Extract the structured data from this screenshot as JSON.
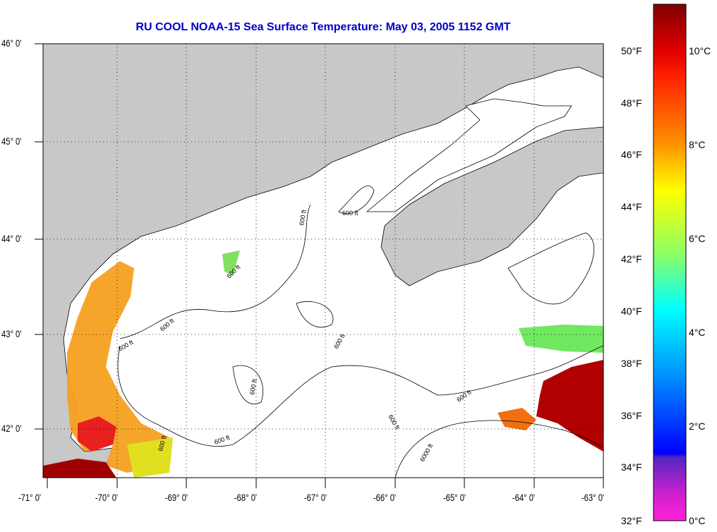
{
  "title": "RU COOL  NOAA-15  Sea Surface Temperature:  May 03, 2005 1152 GMT",
  "lat_labels": [
    "46° 0'",
    "45° 0'",
    "44° 0'",
    "43° 0'",
    "42° 0'"
  ],
  "lon_labels": [
    "-71° 0'",
    "-70° 0'",
    "-69° 0'",
    "-68° 0'",
    "-67° 0'",
    "-66° 0'",
    "-65° 0'",
    "-64° 0'",
    "-63° 0'"
  ],
  "contour_labels": [
    "600 ft",
    "600 ft",
    "600 ft",
    "600 ft",
    "600 ft",
    "600 ft",
    "600 ft",
    "600 ft",
    "600 ft",
    "600 ft",
    "600 ft",
    "6000 ft"
  ],
  "colorbar": {
    "fahrenheit": [
      "50°F",
      "48°F",
      "46°F",
      "44°F",
      "42°F",
      "40°F",
      "38°F",
      "36°F",
      "34°F",
      "32°F"
    ],
    "celsius": [
      "10°C",
      "8°C",
      "6°C",
      "4°C",
      "2°C",
      "0°C"
    ]
  },
  "colors": {
    "land": "#c8c8c8",
    "title": "#0000c8"
  }
}
